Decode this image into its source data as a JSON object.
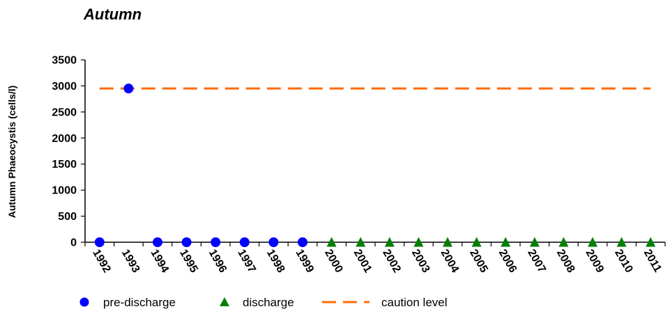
{
  "chart_data": {
    "type": "scatter",
    "title": "Autumn",
    "ylabel": "Autumn Phaeocystis (cells/l)",
    "xlabel": "",
    "ylim": [
      0,
      3500
    ],
    "yticks": [
      "0",
      "500",
      "1000",
      "1500",
      "2000",
      "2500",
      "3000",
      "3500"
    ],
    "categories": [
      "1992",
      "1993",
      "1994",
      "1995",
      "1996",
      "1997",
      "1998",
      "1999",
      "2000",
      "2001",
      "2002",
      "2003",
      "2004",
      "2005",
      "2006",
      "2007",
      "2008",
      "2009",
      "2010",
      "2011"
    ],
    "series": [
      {
        "name": "pre-discharge",
        "marker": "circle",
        "color": "#0000ff",
        "points": [
          {
            "x": "1992",
            "y": 0
          },
          {
            "x": "1993",
            "y": 2950
          },
          {
            "x": "1994",
            "y": 0
          },
          {
            "x": "1995",
            "y": 0
          },
          {
            "x": "1996",
            "y": 0
          },
          {
            "x": "1997",
            "y": 0
          },
          {
            "x": "1998",
            "y": 0
          },
          {
            "x": "1999",
            "y": 0
          }
        ]
      },
      {
        "name": "discharge",
        "marker": "triangle",
        "color": "#008000",
        "points": [
          {
            "x": "2000",
            "y": 0
          },
          {
            "x": "2001",
            "y": 0
          },
          {
            "x": "2002",
            "y": 0
          },
          {
            "x": "2003",
            "y": 0
          },
          {
            "x": "2004",
            "y": 0
          },
          {
            "x": "2005",
            "y": 0
          },
          {
            "x": "2006",
            "y": 0
          },
          {
            "x": "2007",
            "y": 0
          },
          {
            "x": "2008",
            "y": 0
          },
          {
            "x": "2009",
            "y": 0
          },
          {
            "x": "2010",
            "y": 0
          },
          {
            "x": "2011",
            "y": 0
          }
        ]
      },
      {
        "name": "caution level",
        "style": "dashed-line",
        "color": "#ff6a00",
        "y": 2950,
        "x_range": [
          "1992",
          "2011"
        ]
      }
    ],
    "legend_position": "bottom",
    "grid": false
  }
}
